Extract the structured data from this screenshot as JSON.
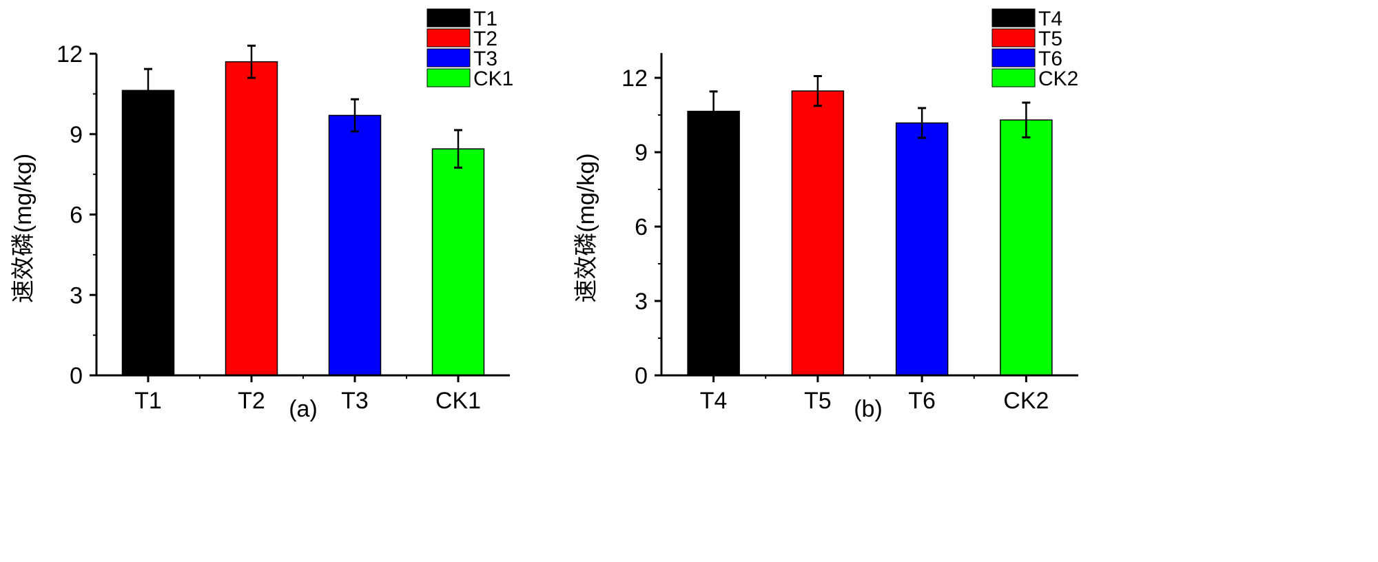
{
  "chart_data": [
    {
      "type": "bar",
      "panel_label": "(a)",
      "ylabel": "速效磷(mg/kg)",
      "xlabel": "",
      "categories": [
        "T1",
        "T2",
        "T3",
        "CK1"
      ],
      "values": [
        10.63,
        11.7,
        9.7,
        8.45
      ],
      "errors": [
        0.8,
        0.6,
        0.6,
        0.7
      ],
      "colors": [
        "#000000",
        "#ff0000",
        "#0000ff",
        "#00ff00"
      ],
      "ylim": [
        0,
        12
      ],
      "yticks": [
        0,
        3,
        6,
        9,
        12
      ],
      "ytick_labels": [
        "0",
        "3",
        "6",
        "9",
        "12"
      ],
      "legend": [
        "T1",
        "T2",
        "T3",
        "CK1"
      ],
      "legend_position": "top-right",
      "grid": false
    },
    {
      "type": "bar",
      "panel_label": "(b)",
      "ylabel": "速效磷(mg/kg)",
      "xlabel": "",
      "categories": [
        "T4",
        "T5",
        "T6",
        "CK2"
      ],
      "values": [
        10.65,
        11.47,
        10.18,
        10.3
      ],
      "errors": [
        0.8,
        0.6,
        0.6,
        0.7
      ],
      "colors": [
        "#000000",
        "#ff0000",
        "#0000ff",
        "#00ff00"
      ],
      "ylim": [
        0,
        13
      ],
      "yticks": [
        0,
        3,
        6,
        9,
        12
      ],
      "ytick_labels": [
        "0",
        "3",
        "6",
        "9",
        "12"
      ],
      "legend": [
        "T4",
        "T5",
        "T6",
        "CK2"
      ],
      "legend_position": "top-right",
      "grid": false
    }
  ]
}
